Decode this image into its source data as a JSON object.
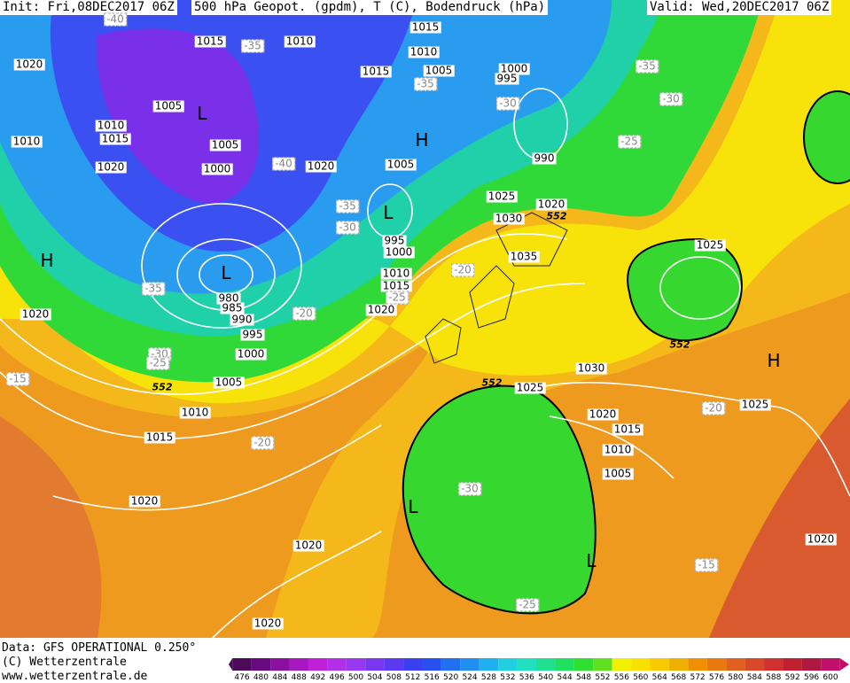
{
  "header": {
    "init": "Init: Fri,08DEC2017 06Z",
    "title": "500 hPa Geopot. (gpdm), T (C), Bodendruck (hPa)",
    "valid": "Valid: Wed,20DEC2017 06Z"
  },
  "footer": {
    "data": "Data: GFS OPERATIONAL 0.250°",
    "copyright": "(C) Wetterzentrale",
    "url": "www.wetterzentrale.de"
  },
  "colorbar": {
    "labels": [
      "476",
      "480",
      "484",
      "488",
      "492",
      "496",
      "500",
      "504",
      "508",
      "512",
      "516",
      "520",
      "524",
      "528",
      "532",
      "536",
      "540",
      "544",
      "548",
      "552",
      "556",
      "560",
      "564",
      "568",
      "572",
      "576",
      "580",
      "584",
      "588",
      "592",
      "596",
      "600"
    ],
    "colors": [
      "#4b0a5a",
      "#6a0a80",
      "#8a10a0",
      "#a818c0",
      "#c020d8",
      "#b030e8",
      "#9838f0",
      "#7838f0",
      "#5a3af0",
      "#3a40f0",
      "#2850f0",
      "#2070f0",
      "#2090f0",
      "#20b0f0",
      "#20d0e0",
      "#20e0c0",
      "#20e090",
      "#20e060",
      "#30e030",
      "#60e020",
      "#f0f000",
      "#f8e000",
      "#f8c800",
      "#f0b000",
      "#f09000",
      "#e87810",
      "#e06020",
      "#d84828",
      "#d03030",
      "#c02030",
      "#b01840",
      "#c0106a"
    ]
  },
  "map": {
    "isobars": [
      "1015",
      "1010",
      "1015",
      "1020",
      "1010",
      "1005",
      "1015",
      "1000",
      "995",
      "1005",
      "1010",
      "1015",
      "1010",
      "1005",
      "1020",
      "1000",
      "1020",
      "1005",
      "990",
      "1025",
      "1030",
      "1020",
      "995",
      "1000",
      "1035",
      "1010",
      "1015",
      "1020",
      "980",
      "985",
      "990",
      "995",
      "1000",
      "1005",
      "1020",
      "1025",
      "1030",
      "1025",
      "1020",
      "1015",
      "1010",
      "1005",
      "1025",
      "1010",
      "1015",
      "1020",
      "1020",
      "1020",
      "1020"
    ],
    "temperatures": [
      "-40",
      "-35",
      "-35",
      "-35",
      "-30",
      "-30",
      "-25",
      "-40",
      "-35",
      "-30",
      "-20",
      "-35",
      "-20",
      "-25",
      "-30",
      "-25",
      "-15",
      "-20",
      "-20",
      "-30",
      "-15",
      "-25"
    ],
    "contours": [
      "552",
      "552",
      "552",
      "552"
    ],
    "pressure_centers": [
      "L",
      "H",
      "L",
      "L",
      "H",
      "H",
      "L",
      "L"
    ]
  }
}
